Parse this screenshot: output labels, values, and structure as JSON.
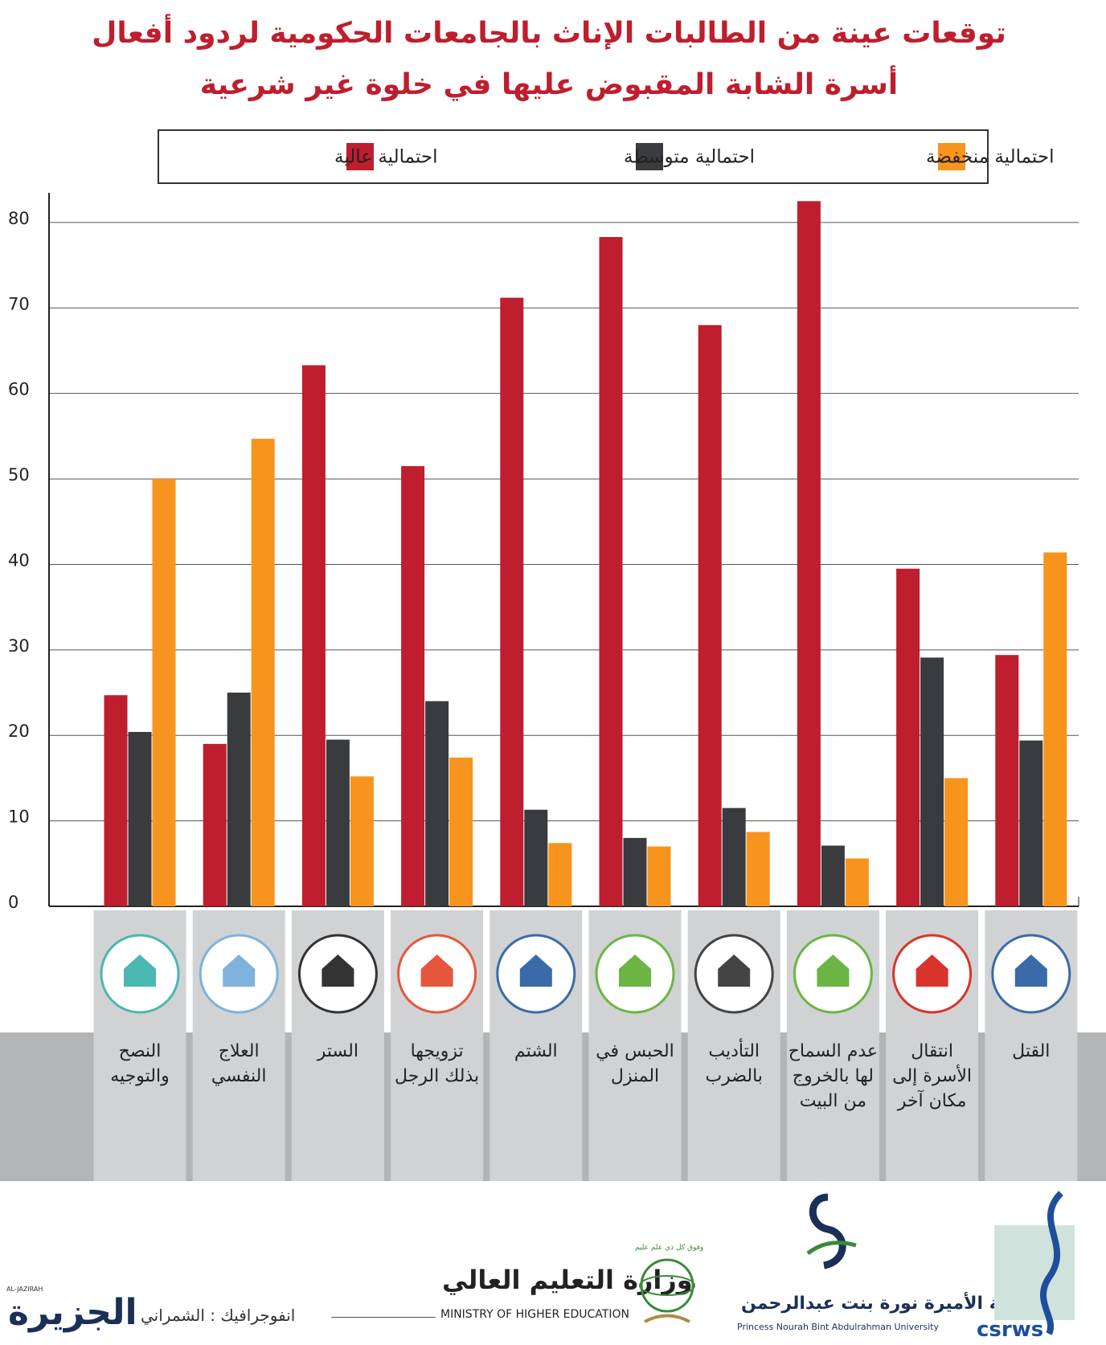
{
  "chart_data": {
    "type": "bar",
    "title": "توقعات عينة من الطالبات الإناث بالجامعات الحكومية لردود أفعال",
    "subtitle": "أسرة الشابة المقبوض عليها في خلوة غير شرعية",
    "categories": [
      "النصح والتوجيه",
      "العلاج النفسي",
      "الستر",
      "تزويجها بذلك الرجل",
      "الشتم",
      "الحبس في المنزل",
      "التأديب بالضرب",
      "عدم السماح لها بالخروج من البيت",
      "انتقال الأسرة إلى مكان آخر",
      "القتل"
    ],
    "series": [
      {
        "name": "احتمالية عالية",
        "color": "#be1e2d",
        "values": [
          24.7,
          19,
          63.3,
          51.5,
          71.2,
          78.3,
          68,
          82.5,
          39.5,
          29.4
        ]
      },
      {
        "name": "احتمالية متوسطة",
        "color": "#3a3b3f",
        "values": [
          20.4,
          25,
          19.5,
          24,
          11.3,
          8,
          11.5,
          7.1,
          29.1,
          19.4
        ]
      },
      {
        "name": "احتمالية منخفضة",
        "color": "#f7941d",
        "values": [
          50,
          54.7,
          15.2,
          17.4,
          7.4,
          7,
          8.7,
          5.6,
          15,
          41.4
        ]
      }
    ],
    "ylim": [
      0,
      83
    ],
    "yticks": [
      0,
      10,
      20,
      30,
      40,
      50,
      60,
      70,
      80
    ],
    "grid": true
  },
  "footer": {
    "credit": "انفوجرافيك : الشمراني",
    "newspaper": "الجزيرة",
    "newspaper_latin": "AL-JAZIRAH",
    "ministry_ar": "وزارة التعليم العالي",
    "ministry_en": "MINISTRY OF HIGHER EDUCATION",
    "ministry_motto": "وفوق كل ذي علم عليم",
    "university_ar": "جامعة الأميرة نورة بنت عبدالرحمن",
    "university_en": "Princess Nourah Bint Abdulrahman University",
    "center": "csrws"
  }
}
